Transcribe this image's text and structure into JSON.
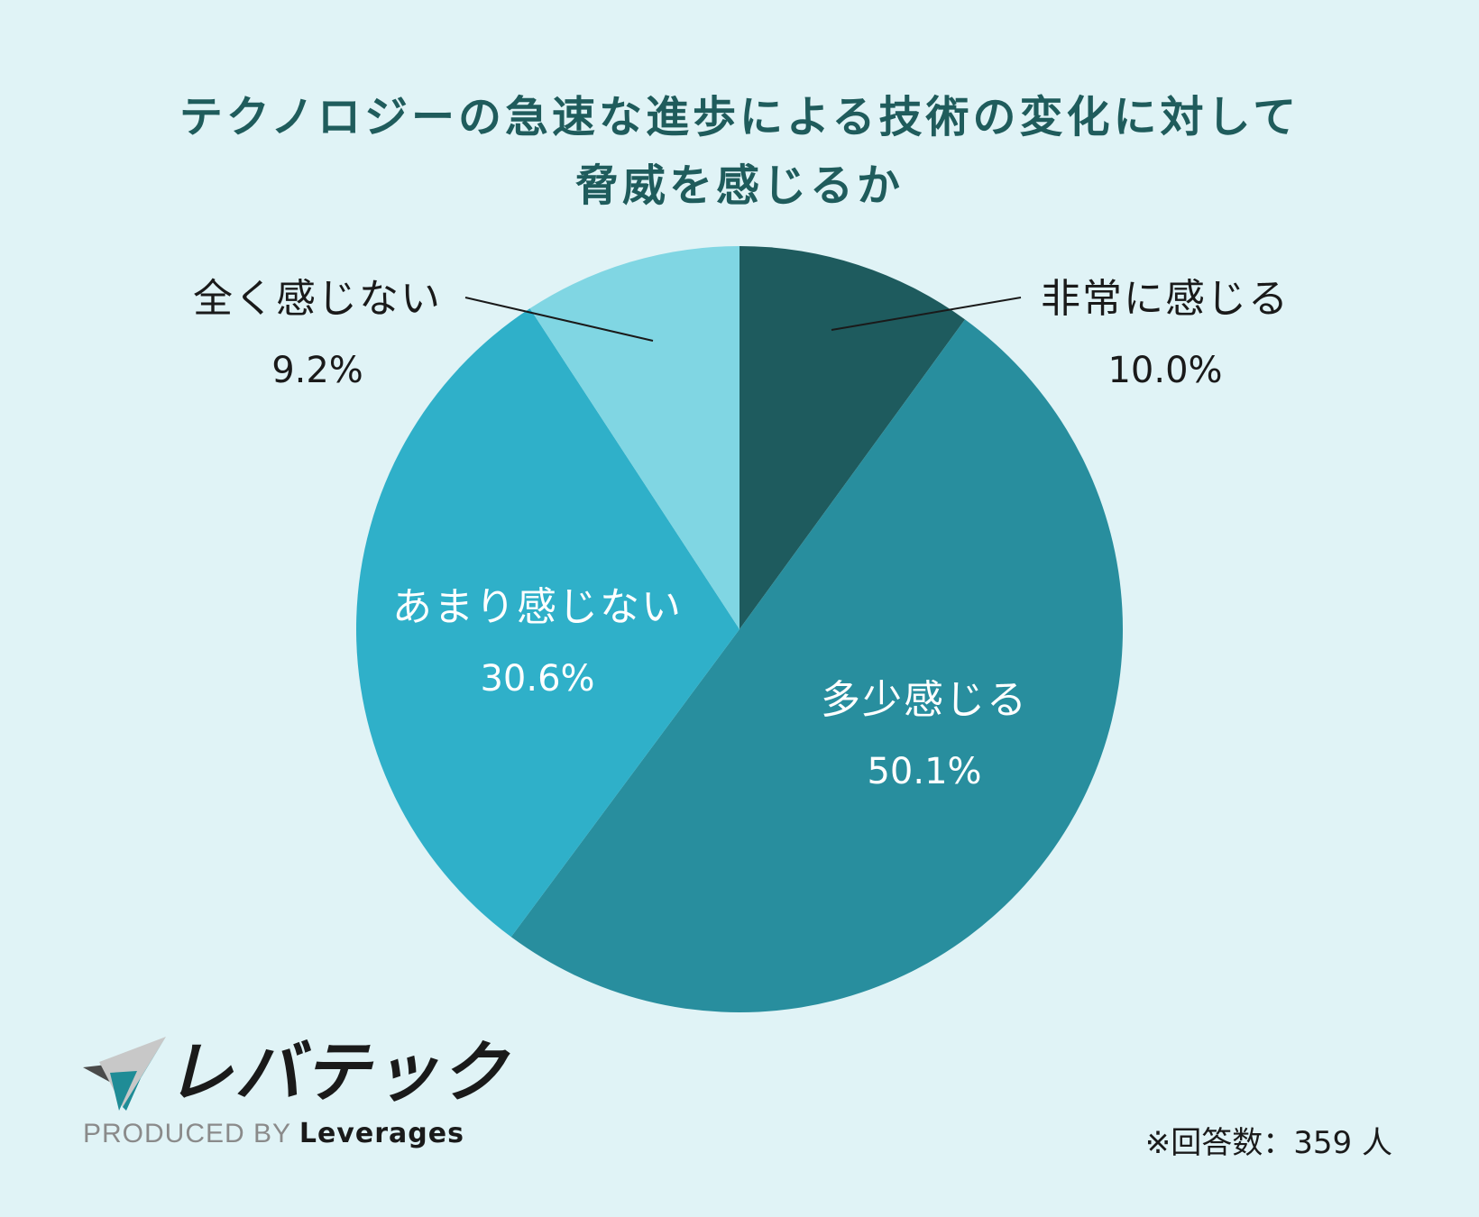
{
  "title": {
    "line1": "テクノロジーの急速な進歩による技術の変化に対して",
    "line2": "脅威を感じるか"
  },
  "chart_data": {
    "type": "pie",
    "title": "テクノロジーの急速な進歩による技術の変化に対して脅威を感じるか",
    "slices": [
      {
        "label": "非常に感じる",
        "value": 10.0,
        "display": "10.0%",
        "color": "#1e5b5e"
      },
      {
        "label": "多少感じる",
        "value": 50.1,
        "display": "50.1%",
        "color": "#288e9e"
      },
      {
        "label": "あまり感じない",
        "value": 30.6,
        "display": "30.6%",
        "color": "#2fb0c9"
      },
      {
        "label": "全く感じない",
        "value": 9.2,
        "display": "9.2%",
        "color": "#80d6e3"
      }
    ]
  },
  "brand": {
    "name": "レバテック",
    "produced_by": "PRODUCED BY",
    "company": "Leverages"
  },
  "note": "※回答数：359 人"
}
